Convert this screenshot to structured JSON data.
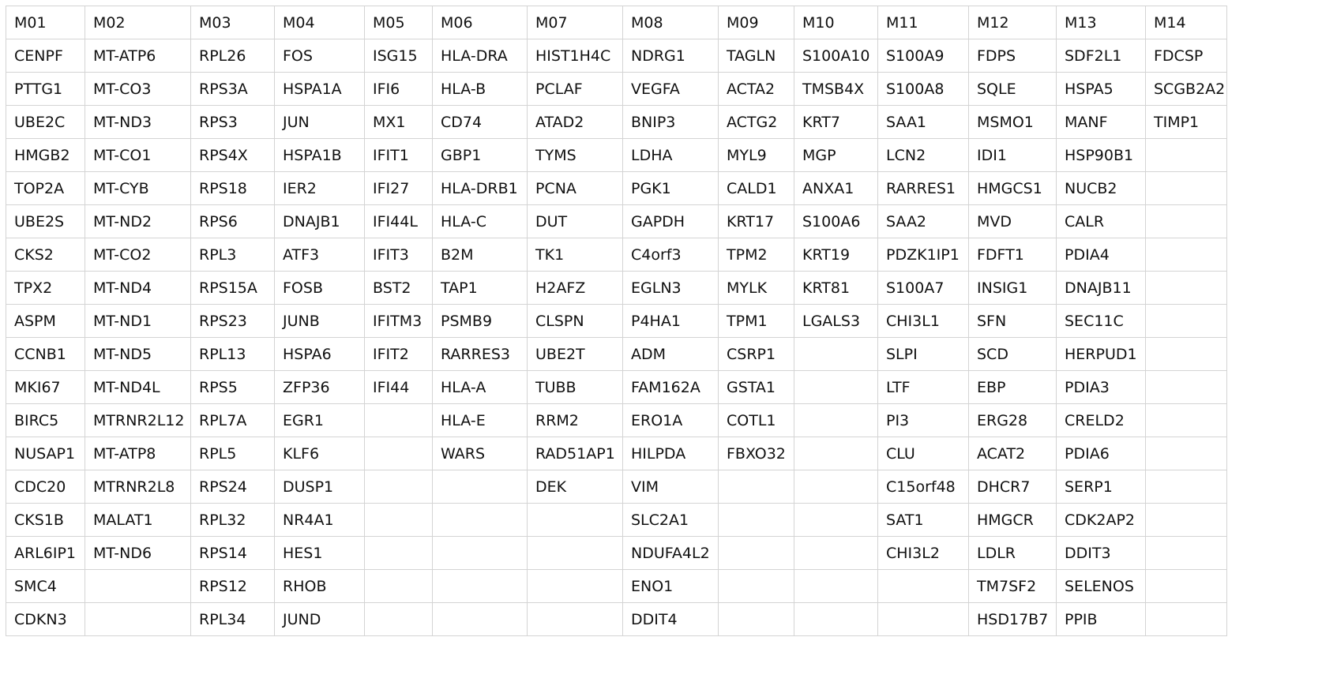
{
  "table": {
    "headers": [
      "M01",
      "M02",
      "M03",
      "M04",
      "M05",
      "M06",
      "M07",
      "M08",
      "M09",
      "M10",
      "M11",
      "M12",
      "M13",
      "M14"
    ],
    "rows": [
      [
        "CENPF",
        "MT-ATP6",
        "RPL26",
        "FOS",
        "ISG15",
        "HLA-DRA",
        "HIST1H4C",
        "NDRG1",
        "TAGLN",
        "S100A10",
        "S100A9",
        "FDPS",
        "SDF2L1",
        "FDCSP"
      ],
      [
        "PTTG1",
        "MT-CO3",
        "RPS3A",
        "HSPA1A",
        "IFI6",
        "HLA-B",
        "PCLAF",
        "VEGFA",
        "ACTA2",
        "TMSB4X",
        "S100A8",
        "SQLE",
        "HSPA5",
        "SCGB2A2"
      ],
      [
        "UBE2C",
        "MT-ND3",
        "RPS3",
        "JUN",
        "MX1",
        "CD74",
        "ATAD2",
        "BNIP3",
        "ACTG2",
        "KRT7",
        "SAA1",
        "MSMO1",
        "MANF",
        "TIMP1"
      ],
      [
        "HMGB2",
        "MT-CO1",
        "RPS4X",
        "HSPA1B",
        "IFIT1",
        "GBP1",
        "TYMS",
        "LDHA",
        "MYL9",
        "MGP",
        "LCN2",
        "IDI1",
        "HSP90B1",
        ""
      ],
      [
        "TOP2A",
        "MT-CYB",
        "RPS18",
        "IER2",
        "IFI27",
        "HLA-DRB1",
        "PCNA",
        "PGK1",
        "CALD1",
        "ANXA1",
        "RARRES1",
        "HMGCS1",
        "NUCB2",
        ""
      ],
      [
        "UBE2S",
        "MT-ND2",
        "RPS6",
        "DNAJB1",
        "IFI44L",
        "HLA-C",
        "DUT",
        "GAPDH",
        "KRT17",
        "S100A6",
        "SAA2",
        "MVD",
        "CALR",
        ""
      ],
      [
        "CKS2",
        "MT-CO2",
        "RPL3",
        "ATF3",
        "IFIT3",
        "B2M",
        "TK1",
        "C4orf3",
        "TPM2",
        "KRT19",
        "PDZK1IP1",
        "FDFT1",
        "PDIA4",
        ""
      ],
      [
        "TPX2",
        "MT-ND4",
        "RPS15A",
        "FOSB",
        "BST2",
        "TAP1",
        "H2AFZ",
        "EGLN3",
        "MYLK",
        "KRT81",
        "S100A7",
        "INSIG1",
        "DNAJB11",
        ""
      ],
      [
        "ASPM",
        "MT-ND1",
        "RPS23",
        "JUNB",
        "IFITM3",
        "PSMB9",
        "CLSPN",
        "P4HA1",
        "TPM1",
        "LGALS3",
        "CHI3L1",
        "SFN",
        "SEC11C",
        ""
      ],
      [
        "CCNB1",
        "MT-ND5",
        "RPL13",
        "HSPA6",
        "IFIT2",
        "RARRES3",
        "UBE2T",
        "ADM",
        "CSRP1",
        "",
        "SLPI",
        "SCD",
        "HERPUD1",
        ""
      ],
      [
        "MKI67",
        "MT-ND4L",
        "RPS5",
        "ZFP36",
        "IFI44",
        "HLA-A",
        "TUBB",
        "FAM162A",
        "GSTA1",
        "",
        "LTF",
        "EBP",
        "PDIA3",
        ""
      ],
      [
        "BIRC5",
        "MTRNR2L12",
        "RPL7A",
        "EGR1",
        "",
        "HLA-E",
        "RRM2",
        "ERO1A",
        "COTL1",
        "",
        "PI3",
        "ERG28",
        "CRELD2",
        ""
      ],
      [
        "NUSAP1",
        "MT-ATP8",
        "RPL5",
        "KLF6",
        "",
        "WARS",
        "RAD51AP1",
        "HILPDA",
        "FBXO32",
        "",
        "CLU",
        "ACAT2",
        "PDIA6",
        ""
      ],
      [
        "CDC20",
        "MTRNR2L8",
        "RPS24",
        "DUSP1",
        "",
        "",
        "DEK",
        "VIM",
        "",
        "",
        "C15orf48",
        "DHCR7",
        "SERP1",
        ""
      ],
      [
        "CKS1B",
        "MALAT1",
        "RPL32",
        "NR4A1",
        "",
        "",
        "",
        "SLC2A1",
        "",
        "",
        "SAT1",
        "HMGCR",
        "CDK2AP2",
        ""
      ],
      [
        "ARL6IP1",
        "MT-ND6",
        "RPS14",
        "HES1",
        "",
        "",
        "",
        "NDUFA4L2",
        "",
        "",
        "CHI3L2",
        "LDLR",
        "DDIT3",
        ""
      ],
      [
        "SMC4",
        "",
        "RPS12",
        "RHOB",
        "",
        "",
        "",
        "ENO1",
        "",
        "",
        "",
        "TM7SF2",
        "SELENOS",
        ""
      ],
      [
        "CDKN3",
        "",
        "RPL34",
        "JUND",
        "",
        "",
        "",
        "DDIT4",
        "",
        "",
        "",
        "HSD17B7",
        "PPIB",
        ""
      ]
    ]
  }
}
